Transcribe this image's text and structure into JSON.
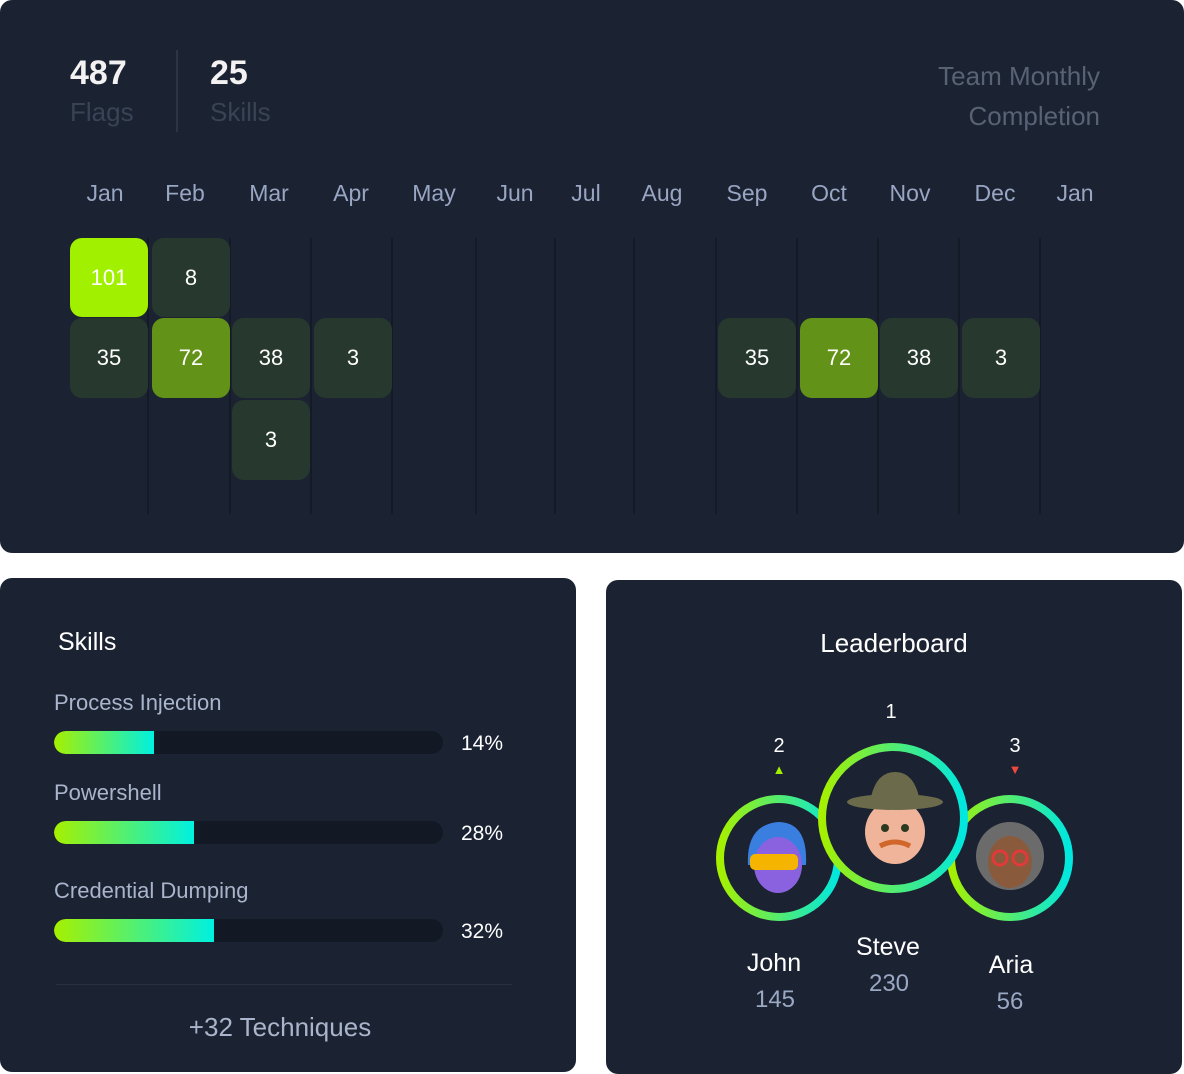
{
  "stats": {
    "flags_value": "487",
    "flags_label": "Flags",
    "skills_value": "25",
    "skills_label": "Skills"
  },
  "calendar_title": "Team Monthly Completion",
  "months": [
    "Jan",
    "Feb",
    "Mar",
    "Apr",
    "May",
    "Jun",
    "Jul",
    "Aug",
    "Sep",
    "Oct",
    "Nov",
    "Dec",
    "Jan"
  ],
  "cells": [
    {
      "month": 0,
      "row": 0,
      "value": "101",
      "level": 3
    },
    {
      "month": 1,
      "row": 0,
      "value": "8",
      "level": 1
    },
    {
      "month": 0,
      "row": 1,
      "value": "35",
      "level": 1
    },
    {
      "month": 1,
      "row": 1,
      "value": "72",
      "level": 2
    },
    {
      "month": 2,
      "row": 1,
      "value": "38",
      "level": 1
    },
    {
      "month": 3,
      "row": 1,
      "value": "3",
      "level": 1
    },
    {
      "month": 2,
      "row": 2,
      "value": "3",
      "level": 1
    },
    {
      "month": 8,
      "row": 1,
      "value": "35",
      "level": 1
    },
    {
      "month": 9,
      "row": 1,
      "value": "72",
      "level": 2
    },
    {
      "month": 10,
      "row": 1,
      "value": "38",
      "level": 1
    },
    {
      "month": 11,
      "row": 1,
      "value": "3",
      "level": 1
    }
  ],
  "colors": {
    "level1": "#27392e",
    "level2": "#639219",
    "level3": "#a0f000",
    "card": "#1b2231",
    "up": "#a0f000",
    "down": "#f0473f"
  },
  "skills": {
    "title": "Skills",
    "items": [
      {
        "name": "Process Injection",
        "percent": "14%"
      },
      {
        "name": "Powershell",
        "percent": "28%"
      },
      {
        "name": "Credential Dumping",
        "percent": "32%"
      }
    ],
    "more": "+32 Techniques"
  },
  "leaderboard": {
    "title": "Leaderboard",
    "players": [
      {
        "rank": "2",
        "name": "John",
        "score": "145",
        "trend": "up"
      },
      {
        "rank": "1",
        "name": "Steve",
        "score": "230",
        "trend": "none"
      },
      {
        "rank": "3",
        "name": "Aria",
        "score": "56",
        "trend": "down"
      }
    ]
  }
}
